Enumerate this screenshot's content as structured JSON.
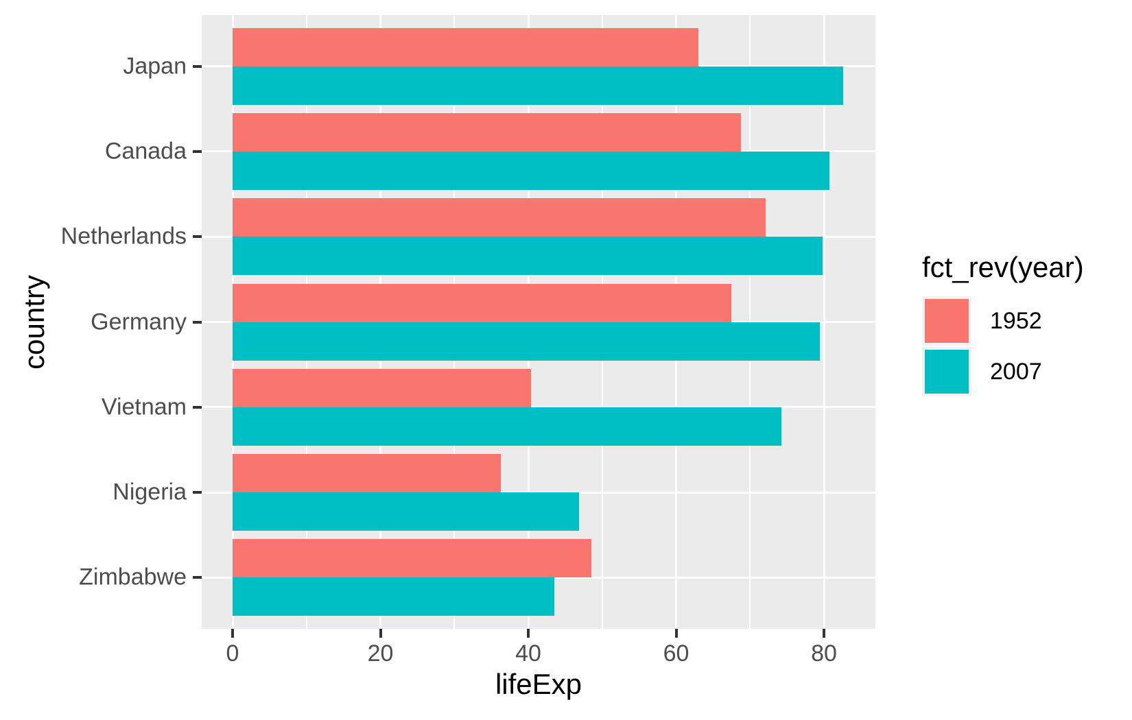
{
  "chart_data": {
    "type": "bar",
    "orientation": "horizontal",
    "title": "",
    "xlabel": "lifeExp",
    "ylabel": "country",
    "categories": [
      "Japan",
      "Canada",
      "Netherlands",
      "Germany",
      "Vietnam",
      "Nigeria",
      "Zimbabwe"
    ],
    "series": [
      {
        "name": "1952",
        "color": "#F8766D",
        "values": [
          63.0,
          68.8,
          72.1,
          67.5,
          40.4,
          36.3,
          48.5
        ]
      },
      {
        "name": "2007",
        "color": "#00BFC4",
        "values": [
          82.6,
          80.7,
          79.8,
          79.4,
          74.2,
          46.9,
          43.5
        ]
      }
    ],
    "x_ticks": [
      0,
      20,
      40,
      60,
      80
    ],
    "x_minor_ticks": [
      10,
      30,
      50,
      70
    ],
    "xlim": [
      -4.2,
      87.0
    ],
    "grid": true,
    "legend_position": "right",
    "group_order_top_to_bottom": [
      "1952",
      "2007"
    ]
  },
  "axes": {
    "x_title": "lifeExp",
    "y_title": "country"
  },
  "legend": {
    "title": "fct_rev(year)",
    "entries": [
      {
        "label": "1952",
        "color": "#F8766D"
      },
      {
        "label": "2007",
        "color": "#00BFC4"
      }
    ]
  },
  "style": {
    "panel_background": "#EBEBEB",
    "gridline_color": "#FFFFFF",
    "axis_text_color": "#4D4D4D",
    "tick_mark_color": "#333333",
    "legend_key_background": "#F2F2F2"
  }
}
